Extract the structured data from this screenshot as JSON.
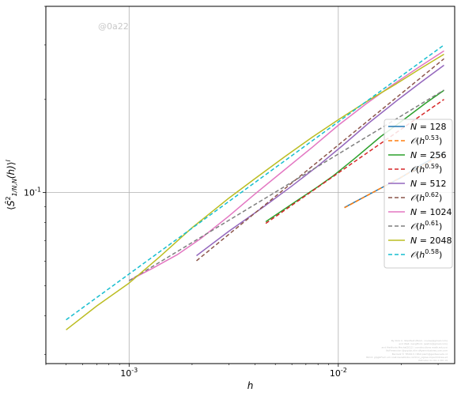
{
  "chart_data": {
    "type": "line",
    "xlabel": "h",
    "ylabel": "⟨Ŝ²₁/N,N(h)⟩ᴵ",
    "xscale": "log",
    "yscale": "log",
    "xlim": [
      0.0004,
      0.036
    ],
    "ylim": [
      0.028,
      0.4
    ],
    "grid": "major",
    "legend_position": "right",
    "x_ticks": [
      {
        "value": 0.001,
        "label": "10⁻³"
      },
      {
        "value": 0.01,
        "label": "10⁻²"
      }
    ],
    "y_ticks": [
      {
        "value": 0.1,
        "label": "10⁻¹"
      }
    ],
    "watermark": "@0a22",
    "footnote_lines": [
      "By Dick C. Stanfield (Biom. course@gmail.com)",
      "and Walt. Gargtford. (walt.b@gmail.com)",
      "and Hedfords Mechal2012 / constructions math.edu.uoi",
      "NoFimension @qoplzk.dlin dApenndustries.uoe.com",
      "Barriel2 © TE2013 / NS0 plarh@genteel.edu.id",
      "ISDnt: ghjgbFium sm.noet.Genetinda.comtrol_yigree.imperimbres.ed",
      "ISDnetal, bi.nbL.C.DU.19"
    ],
    "series": [
      {
        "name": "N = 128",
        "color": "#1f77b4",
        "dashed": false,
        "x": [
          0.0107,
          0.015,
          0.02,
          0.025,
          0.032
        ],
        "y": [
          0.0895,
          0.101,
          0.112,
          0.123,
          0.135
        ]
      },
      {
        "name": "O(h^0.53)",
        "color": "#ff7f0e",
        "dashed": true,
        "x": [
          0.0107,
          0.032
        ],
        "y": [
          0.0893,
          0.1333
        ]
      },
      {
        "name": "N = 256",
        "color": "#2ca02c",
        "dashed": false,
        "x": [
          0.0045,
          0.006,
          0.008,
          0.0095,
          0.012,
          0.016,
          0.021,
          0.026,
          0.032
        ],
        "y": [
          0.0805,
          0.0918,
          0.1045,
          0.1135,
          0.129,
          0.152,
          0.174,
          0.194,
          0.214
        ]
      },
      {
        "name": "O(h^0.59)",
        "color": "#d62728",
        "dashed": true,
        "x": [
          0.0045,
          0.032
        ],
        "y": [
          0.0795,
          0.2
        ]
      },
      {
        "name": "N = 512",
        "color": "#9467bd",
        "dashed": false,
        "x": [
          0.0021,
          0.003,
          0.0045,
          0.006,
          0.008,
          0.0105,
          0.014,
          0.019,
          0.025,
          0.032
        ],
        "y": [
          0.0625,
          0.075,
          0.091,
          0.105,
          0.122,
          0.142,
          0.168,
          0.198,
          0.228,
          0.258
        ]
      },
      {
        "name": "O(h^0.62)",
        "color": "#8c564b",
        "dashed": true,
        "x": [
          0.0021,
          0.032
        ],
        "y": [
          0.0602,
          0.2708
        ]
      },
      {
        "name": "N = 1024",
        "color": "#e377c2",
        "dashed": false,
        "x": [
          0.001,
          0.0013,
          0.0017,
          0.0022,
          0.003,
          0.004,
          0.0055,
          0.0075,
          0.01,
          0.0135,
          0.018,
          0.024,
          0.032
        ],
        "y": [
          0.052,
          0.057,
          0.063,
          0.071,
          0.084,
          0.099,
          0.118,
          0.14,
          0.165,
          0.193,
          0.222,
          0.253,
          0.287
        ]
      },
      {
        "name": "O(h^0.61)",
        "color": "#7f7f7f",
        "dashed": true,
        "x": [
          0.001,
          0.032
        ],
        "y": [
          0.0519,
          0.2145
        ]
      },
      {
        "name": "N = 2048",
        "color": "#bcbd22",
        "dashed": false,
        "x": [
          0.0005,
          0.0007,
          0.001,
          0.0014,
          0.002,
          0.003,
          0.004,
          0.0055,
          0.0075,
          0.01,
          0.014,
          0.019,
          0.025,
          0.032
        ],
        "y": [
          0.036,
          0.043,
          0.051,
          0.062,
          0.077,
          0.096,
          0.111,
          0.13,
          0.151,
          0.172,
          0.199,
          0.225,
          0.253,
          0.28
        ]
      },
      {
        "name": "O(h^0.58)",
        "color": "#17becf",
        "dashed": true,
        "x": [
          0.0005,
          0.032
        ],
        "y": [
          0.0388,
          0.3
        ]
      }
    ]
  }
}
